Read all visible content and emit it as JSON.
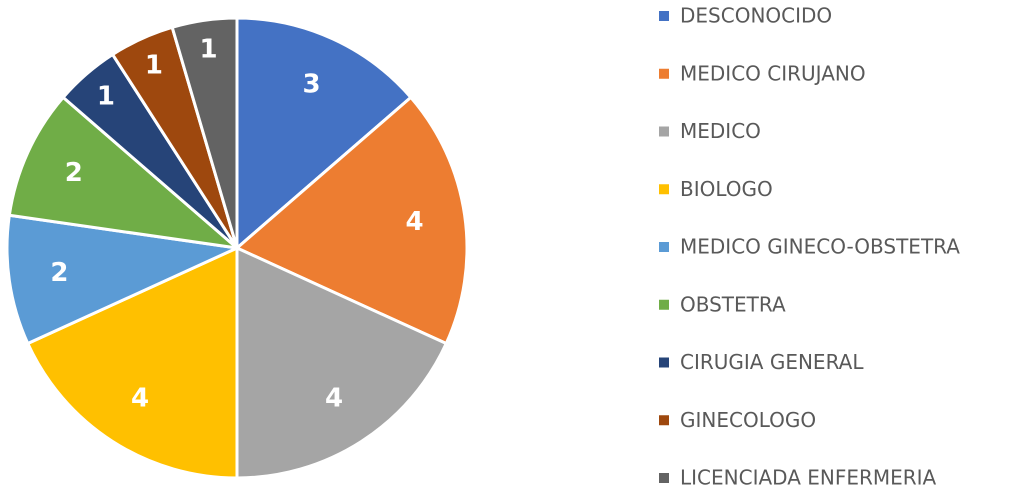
{
  "chart_data": {
    "type": "pie",
    "categories": [
      "DESCONOCIDO",
      "MEDICO CIRUJANO",
      "MEDICO",
      "BIOLOGO",
      "MEDICO GINECO-OBSTETRA",
      "OBSTETRA",
      "CIRUGIA GENERAL",
      "GINECOLOGO",
      "LICENCIADA ENFERMERIA"
    ],
    "values": [
      3,
      4,
      4,
      4,
      2,
      2,
      1,
      1,
      1
    ],
    "colors": [
      "#4472c4",
      "#ed7d31",
      "#a5a5a5",
      "#ffc000",
      "#5b9bd5",
      "#70ad47",
      "#264478",
      "#9e480e",
      "#636363"
    ],
    "legend": "right"
  }
}
